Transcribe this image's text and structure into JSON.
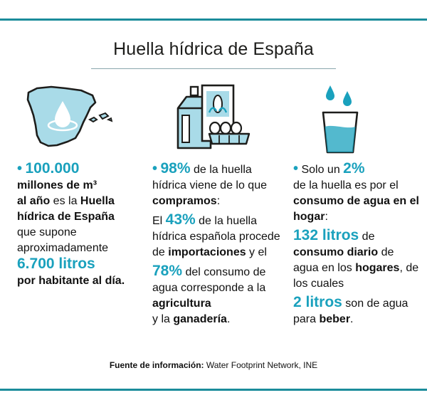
{
  "title": "Huella hídrica de España",
  "col1": {
    "bullet": "•",
    "big1": "100.000",
    "t1a": "millones de m³",
    "t1b": "al año",
    "t1c": " es la ",
    "t1d": "Huella hídrica de España",
    "t1e": "que supone aproximadamente",
    "big2": "6.700 litros",
    "t2": "por habitante al día."
  },
  "col2": {
    "bullet": "•",
    "big1": "98%",
    "t1a": " de la huella hídrica viene de lo que ",
    "t1b": "compramos",
    "t1c": ":",
    "t2a": "El ",
    "big2": "43%",
    "t2b": " de la huella hídrica española procede de ",
    "t2c": "importaciones",
    "t2d": " y el",
    "big3": "78%",
    "t3a": " del consumo de agua corresponde a la ",
    "t3b": "agricultura",
    "t3c": "y la ",
    "t3d": "ganadería",
    "t3e": "."
  },
  "col3": {
    "bullet": "•",
    "t1a": " Solo un ",
    "big1": "2%",
    "t1b": "de la huella es por el ",
    "t1c": "consumo de agua en el hogar",
    "t1d": ":",
    "big2": "132 litros",
    "t2a": " de ",
    "t2b": "consumo diario",
    "t2c": " de agua en los ",
    "t2d": "hogares",
    "t2e": ", de los cuales",
    "big3": "2 litros",
    "t3a": " son de agua para ",
    "t3b": "beber",
    "t3c": "."
  },
  "source": {
    "label": "Fuente de información:",
    "value": " Water Footprint Network, INE"
  },
  "colors": {
    "accent": "#1aa1bd",
    "rule": "#1b8c9b",
    "map": "#a9dbe8",
    "ink": "#1d1d1b"
  }
}
